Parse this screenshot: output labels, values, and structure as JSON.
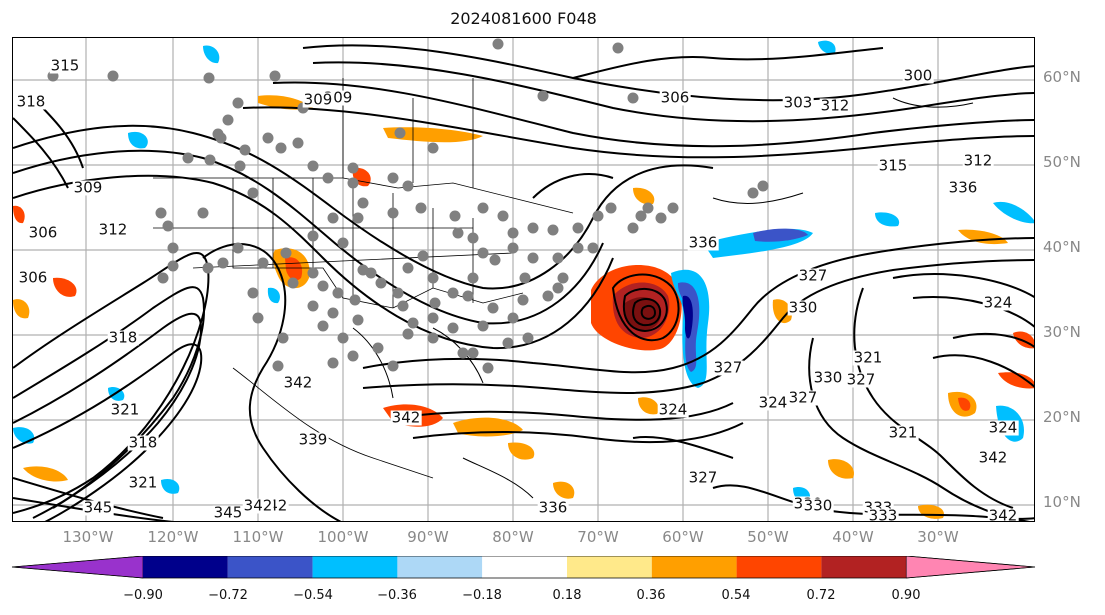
{
  "figure": {
    "title": "2024081600 F048"
  },
  "map": {
    "latitude_labels": [
      "60°N",
      "50°N",
      "40°N",
      "30°N",
      "20°N",
      "10°N"
    ],
    "longitude_labels": [
      "130°W",
      "120°W",
      "110°W",
      "100°W",
      "90°W",
      "80°W",
      "70°W",
      "60°W",
      "50°W",
      "40°W",
      "30°W"
    ],
    "contour_labels": [
      "315",
      "318",
      "309",
      "306",
      "312",
      "309",
      "306",
      "318",
      "321",
      "318",
      "321",
      "342",
      "345",
      "342",
      "339",
      "342",
      "345",
      "342",
      "336",
      "324",
      "327",
      "324",
      "327",
      "330",
      "327",
      "321",
      "324",
      "333",
      "330",
      "336",
      "312",
      "315",
      "300",
      "303",
      "312",
      "306",
      "309",
      "330",
      "327",
      "321",
      "324",
      "342",
      "336",
      "342",
      "333",
      "330",
      "327"
    ],
    "colors": {
      "contour": "#000000",
      "grid": "#b0b0b0",
      "border": "#000000",
      "stations": "#808080"
    }
  },
  "colorbar": {
    "ticks": [
      "−0.90",
      "−0.72",
      "−0.54",
      "−0.36",
      "−0.18",
      "0.18",
      "0.36",
      "0.54",
      "0.72",
      "0.90"
    ],
    "bins": [
      {
        "color": "#9932cc"
      },
      {
        "color": "#00008b"
      },
      {
        "color": "#3b54c8"
      },
      {
        "color": "#00bfff"
      },
      {
        "color": "#add8f6"
      },
      {
        "color": "#ffffff"
      },
      {
        "color": "#ffe98a"
      },
      {
        "color": "#ff9f00"
      },
      {
        "color": "#ff4500"
      },
      {
        "color": "#b22222"
      },
      {
        "color": "#ff85b2"
      }
    ]
  }
}
